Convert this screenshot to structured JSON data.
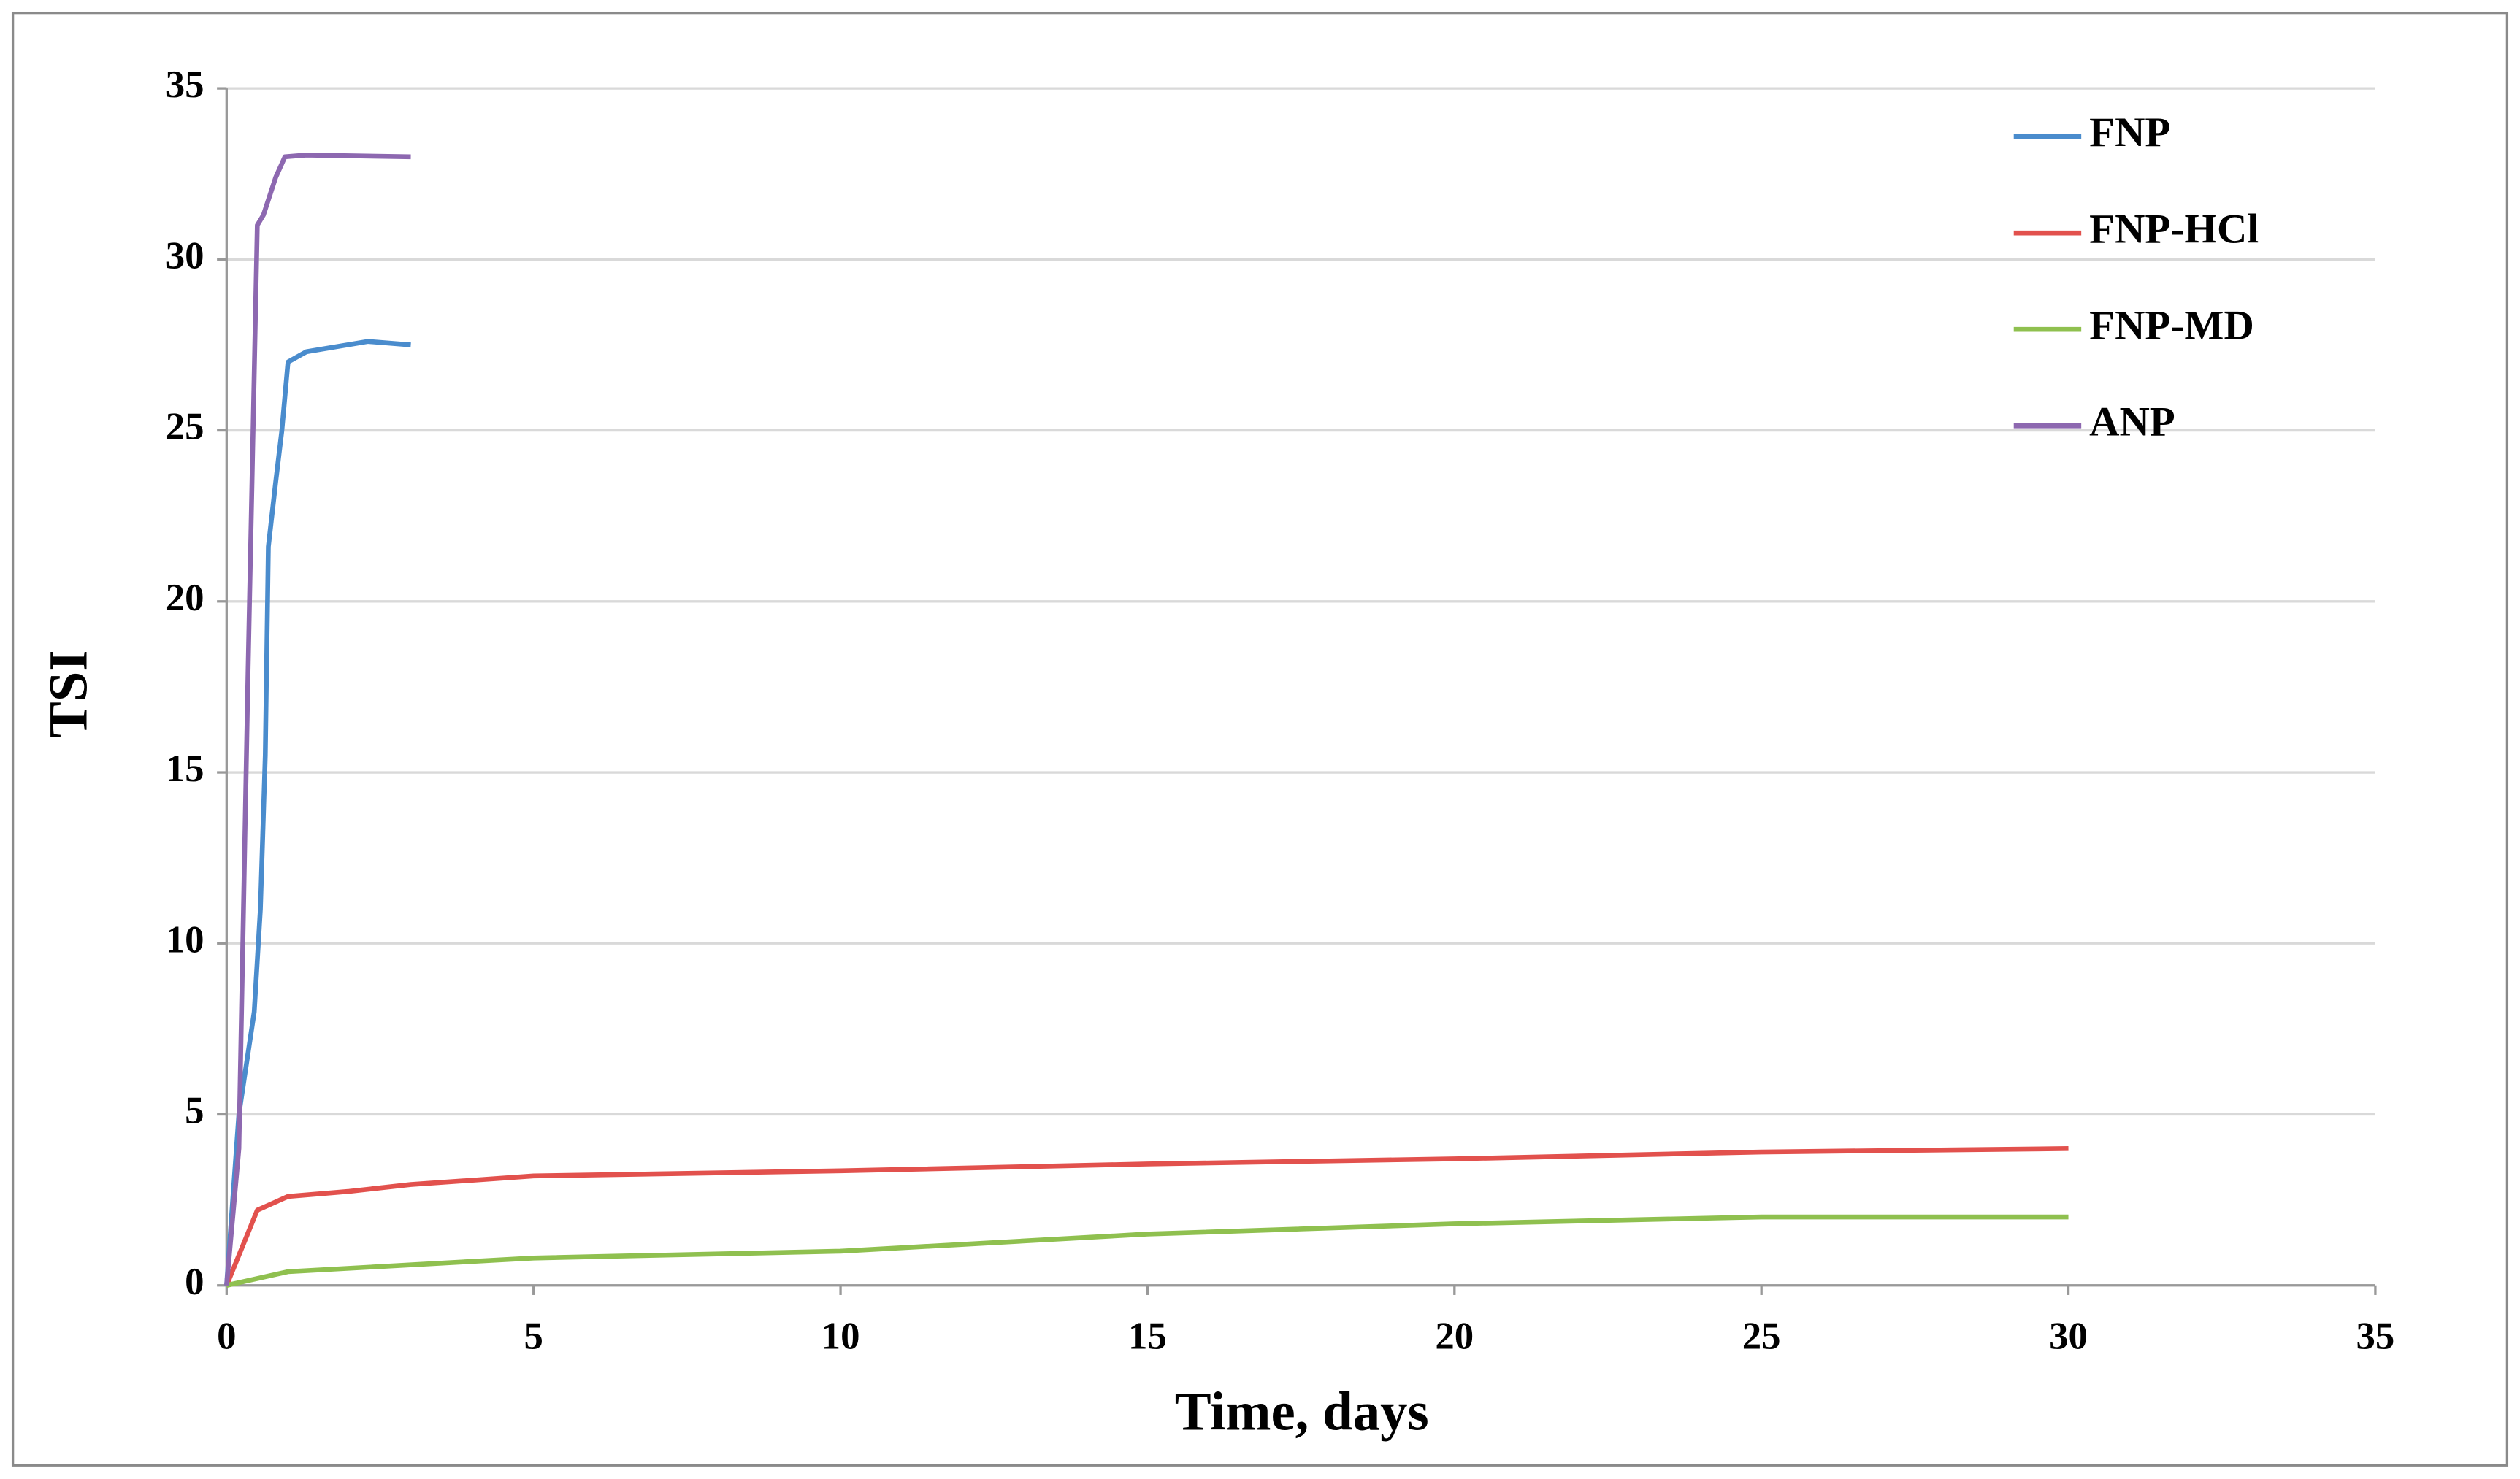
{
  "chart_data": {
    "type": "line",
    "x_label": "Time, days",
    "y_label": "TSI",
    "xlim": [
      0,
      35
    ],
    "xticks": [
      0,
      5,
      10,
      15,
      20,
      25,
      30,
      35
    ],
    "ylim": [
      0,
      35
    ],
    "yticks": [
      0,
      5,
      10,
      15,
      20,
      25,
      30,
      35
    ],
    "grid": true,
    "legend": "upper right",
    "series": [
      {
        "name": "FNP",
        "color": "#4a8ccd",
        "x": [
          0,
          0.2,
          0.35,
          0.45,
          0.55,
          0.63,
          0.68,
          0.8,
          0.9,
          1,
          1.3,
          2.3,
          3
        ],
        "values": [
          0,
          5,
          6.8,
          8,
          11,
          15.5,
          21.6,
          23.5,
          25,
          27,
          27.3,
          27.6,
          27.5
        ]
      },
      {
        "name": "FNP-HCl",
        "color": "#e2514d",
        "x": [
          0,
          0.5,
          1,
          2,
          3,
          5,
          10,
          15,
          20,
          25,
          30
        ],
        "values": [
          0,
          2.2,
          2.6,
          2.75,
          2.95,
          3.2,
          3.35,
          3.55,
          3.7,
          3.9,
          4.0
        ]
      },
      {
        "name": "FNP-MD",
        "color": "#8fc04f",
        "x": [
          0,
          1,
          5,
          10,
          15,
          20,
          25,
          28,
          30
        ],
        "values": [
          0,
          0.4,
          0.8,
          1.0,
          1.5,
          1.8,
          2.0,
          2.0,
          2.0
        ]
      },
      {
        "name": "ANP",
        "color": "#8d68b0",
        "x": [
          0,
          0.2,
          0.35,
          0.5,
          0.6,
          0.8,
          0.95,
          1.3,
          3
        ],
        "values": [
          0,
          4,
          18,
          31,
          31.3,
          32.4,
          33,
          33.05,
          33
        ]
      }
    ]
  }
}
